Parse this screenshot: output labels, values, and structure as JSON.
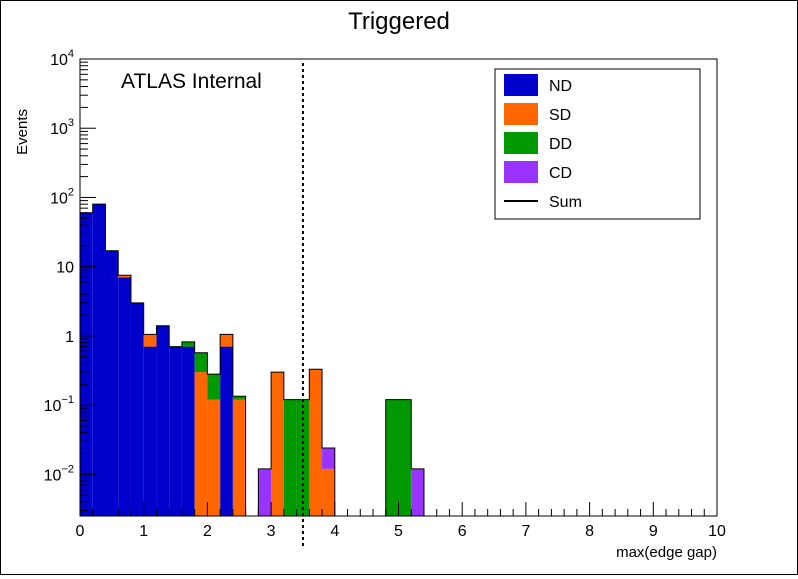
{
  "chart_data": {
    "type": "bar",
    "title": "Triggered",
    "xlabel": "max(edge gap)",
    "ylabel": "Events",
    "annotation": "ATLAS Internal",
    "xlim": [
      0,
      10
    ],
    "ylim": [
      0.0025,
      10000
    ],
    "yscale": "log",
    "bin_width": 0.2,
    "stacked": true,
    "legend_position": "top-right",
    "x_ticks": [
      "0",
      "1",
      "2",
      "3",
      "4",
      "5",
      "6",
      "7",
      "8",
      "9",
      "10"
    ],
    "y_ticks": [
      {
        "base": "10",
        "exp": "4"
      },
      {
        "base": "10",
        "exp": "3"
      },
      {
        "base": "10",
        "exp": "2"
      },
      {
        "base": "10",
        "exp": ""
      },
      {
        "base": "1",
        "exp": ""
      },
      {
        "base": "10",
        "exp": "−1"
      },
      {
        "base": "10",
        "exp": "−2"
      }
    ],
    "cut_line": {
      "x": 3.5,
      "style": "dotted"
    },
    "series": [
      {
        "name": "ND",
        "color": "#0000cc",
        "bins": [
          [
            0.0,
            60
          ],
          [
            0.2,
            80
          ],
          [
            0.4,
            17
          ],
          [
            0.6,
            7
          ],
          [
            0.8,
            3
          ],
          [
            1.0,
            0.7
          ],
          [
            1.2,
            1.4
          ],
          [
            1.4,
            0.7
          ],
          [
            1.6,
            0.7
          ],
          [
            2.2,
            0.7
          ]
        ]
      },
      {
        "name": "SD",
        "color": "#ff6600",
        "bins": [
          [
            0.6,
            0.5
          ],
          [
            1.0,
            0.35
          ],
          [
            1.8,
            0.3
          ],
          [
            2.0,
            0.12
          ],
          [
            2.2,
            0.35
          ],
          [
            2.4,
            0.12
          ],
          [
            3.0,
            0.3
          ],
          [
            3.6,
            0.33
          ],
          [
            3.8,
            0.012
          ]
        ]
      },
      {
        "name": "DD",
        "color": "#009900",
        "bins": [
          [
            1.6,
            0.12
          ],
          [
            1.8,
            0.27
          ],
          [
            2.0,
            0.16
          ],
          [
            2.4,
            0.014
          ],
          [
            3.2,
            0.12
          ],
          [
            3.4,
            0.12
          ],
          [
            4.8,
            0.12
          ],
          [
            5.0,
            0.12
          ]
        ]
      },
      {
        "name": "CD",
        "color": "#9933ff",
        "bins": [
          [
            2.8,
            0.012
          ],
          [
            3.8,
            0.012
          ],
          [
            5.2,
            0.012
          ]
        ]
      }
    ],
    "sum_legend": {
      "name": "Sum",
      "color": "#000000"
    }
  }
}
